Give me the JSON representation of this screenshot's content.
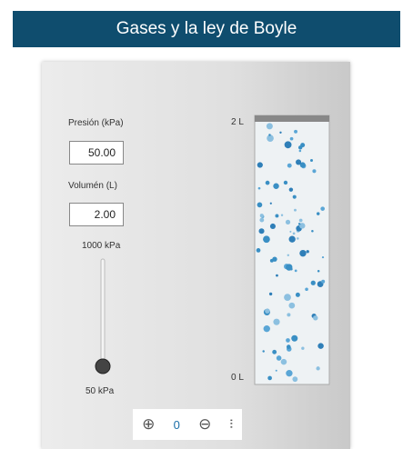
{
  "header": {
    "title": "Gases y la ley de Boyle"
  },
  "controls": {
    "pressure_label": "Presión (kPa)",
    "pressure_value": "50.00",
    "volume_label": "Volumén (L)",
    "volume_value": "2.00",
    "slider_max": "1000 kPa",
    "slider_min": "50 kPa"
  },
  "cylinder": {
    "top_label": "2 L",
    "bottom_label": "0 L"
  },
  "toolbar": {
    "count": "0"
  }
}
